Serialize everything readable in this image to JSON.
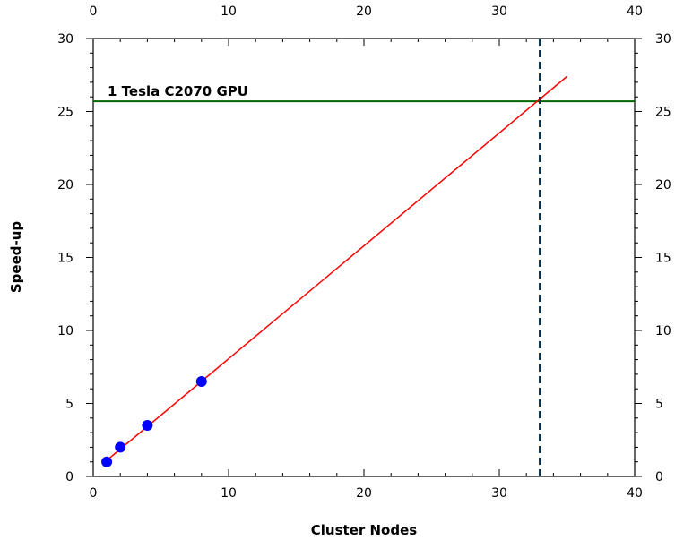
{
  "chart_data": {
    "type": "scatter",
    "xlabel": "Cluster Nodes",
    "ylabel": "Speed-up",
    "xlim": [
      0,
      40
    ],
    "ylim": [
      0,
      30
    ],
    "x_ticks": [
      "0",
      "10",
      "20",
      "30",
      "40"
    ],
    "y_ticks": [
      "0",
      "5",
      "10",
      "15",
      "20",
      "25",
      "30"
    ],
    "grid": false,
    "series": [
      {
        "type": "scatter",
        "color": "#0000ff",
        "points": [
          {
            "x": 1,
            "y": 1.0
          },
          {
            "x": 2,
            "y": 2.0
          },
          {
            "x": 4,
            "y": 3.5
          },
          {
            "x": 8,
            "y": 6.5
          }
        ]
      },
      {
        "type": "line",
        "color": "#ff0000",
        "points": [
          {
            "x": 1,
            "y": 1.1
          },
          {
            "x": 35,
            "y": 27.4
          }
        ]
      }
    ],
    "reference_lines": [
      {
        "orientation": "horizontal",
        "value": 25.7,
        "color": "#006400",
        "style": "solid",
        "label": "1 Tesla C2070 GPU"
      },
      {
        "orientation": "vertical",
        "value": 33,
        "color": "#003050",
        "style": "dashed"
      }
    ]
  }
}
